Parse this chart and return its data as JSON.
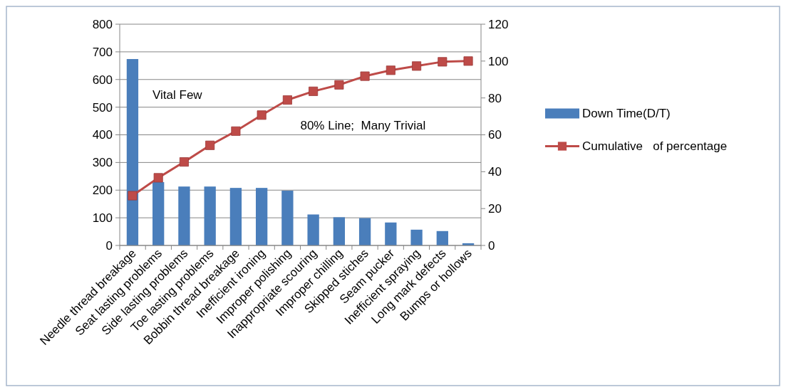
{
  "chart_data": {
    "type": "bar",
    "categories": [
      "Needle thread breakage",
      "Seat lasting problems",
      "Side lasting problems",
      "Toe lasting problems",
      "Bobbin thread breakage",
      "Inefficient ironing",
      "Improper polishing",
      "Inappropriate scouring",
      "Improper chilling",
      "Skipped stiches",
      "Seam pucker",
      "Inefficient spraying",
      "Long mark defects",
      "Bumps or hollows"
    ],
    "series": [
      {
        "name": "Down Time(D/T)",
        "color": "#4a7ebb",
        "values": [
          674,
          229,
          213,
          213,
          208,
          208,
          198,
          112,
          102,
          99,
          83,
          57,
          52,
          8
        ]
      },
      {
        "name": "Cumulative   of percentage",
        "type": "line",
        "axis": "y2",
        "color": "#be4b48",
        "marker": "square",
        "values": [
          27,
          36.7,
          45.3,
          54.3,
          62,
          70.7,
          78.9,
          83.6,
          87.1,
          91.8,
          95,
          97.3,
          99.6,
          100
        ]
      }
    ],
    "ylim": [
      0,
      800
    ],
    "yticks": [
      0,
      100,
      200,
      300,
      400,
      500,
      600,
      700,
      800
    ],
    "y2lim": [
      0,
      120
    ],
    "y2ticks": [
      0,
      20,
      40,
      60,
      80,
      100,
      120
    ],
    "grid": "y",
    "legend": "right",
    "annotations": [
      "Vital Few",
      "80% Line;  Many Trivial"
    ]
  }
}
